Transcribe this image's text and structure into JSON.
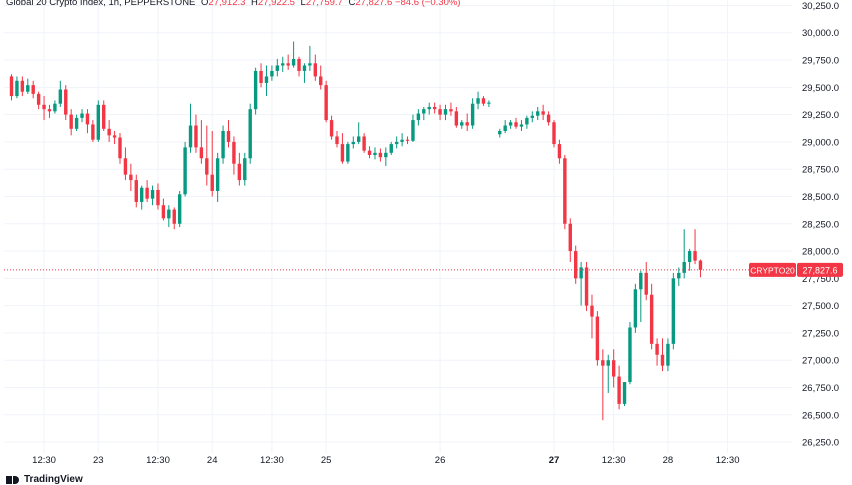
{
  "header": {
    "title": "Global 20 Crypto Index, 1h, PEPPERSTONE",
    "o_label": "O",
    "o_value": "27,912.3",
    "h_label": "H",
    "h_value": "27,922.5",
    "l_label": "L",
    "l_value": "27,759.7",
    "c_label": "C",
    "c_value": "27,827.6",
    "change": "−84.6 (−0.30%)"
  },
  "footer": {
    "brand": "TradingView"
  },
  "colors": {
    "up": "#089981",
    "down": "#f23645",
    "grid": "#f0f3fa",
    "axis_text": "#131722",
    "last_price": "#f23645"
  },
  "chart_data": {
    "type": "candlestick",
    "title": "Global 20 Crypto Index, 1h, PEPPERSTONE",
    "ylim": [
      26150,
      30300
    ],
    "y_ticks": [
      26250,
      26500,
      26750,
      27000,
      27250,
      27500,
      27750,
      28000,
      28250,
      28500,
      28750,
      29000,
      29250,
      29500,
      29750,
      30000,
      30250
    ],
    "y_tick_labels": [
      "26,250.0",
      "26,500.0",
      "26,750.0",
      "27,000.0",
      "27,250.0",
      "27,500.0",
      "27,750.0",
      "28,000.0",
      "28,250.0",
      "28,500.0",
      "28,750.0",
      "29,000.0",
      "29,250.0",
      "29,500.0",
      "29,750.0",
      "30,000.0",
      "30,250.0"
    ],
    "x_tick_labels": [
      {
        "label": "12:30",
        "bar": 6
      },
      {
        "label": "23",
        "bar": 16
      },
      {
        "label": "12:30",
        "bar": 27
      },
      {
        "label": "24",
        "bar": 37
      },
      {
        "label": "12:30",
        "bar": 48
      },
      {
        "label": "25",
        "bar": 58
      },
      {
        "label": "26",
        "bar": 79
      },
      {
        "label": "27",
        "bar": 100
      },
      {
        "label": "12:30",
        "bar": 111
      },
      {
        "label": "28",
        "bar": 121
      },
      {
        "label": "12:30",
        "bar": 132
      }
    ],
    "last_price": {
      "label": "CRYPTO20",
      "value": 27827.6,
      "value_label": "27,827.6"
    },
    "candles": [
      [
        29600,
        29620,
        29380,
        29420
      ],
      [
        29420,
        29600,
        29400,
        29560
      ],
      [
        29560,
        29600,
        29420,
        29460
      ],
      [
        29460,
        29580,
        29440,
        29520
      ],
      [
        29520,
        29560,
        29400,
        29440
      ],
      [
        29440,
        29460,
        29300,
        29340
      ],
      [
        29340,
        29420,
        29200,
        29300
      ],
      [
        29300,
        29340,
        29220,
        29280
      ],
      [
        29280,
        29380,
        29260,
        29350
      ],
      [
        29350,
        29560,
        29320,
        29480
      ],
      [
        29480,
        29520,
        29200,
        29250
      ],
      [
        29250,
        29300,
        29060,
        29120
      ],
      [
        29120,
        29250,
        29100,
        29220
      ],
      [
        29220,
        29300,
        29180,
        29260
      ],
      [
        29260,
        29300,
        29080,
        29160
      ],
      [
        29160,
        29200,
        29000,
        29020
      ],
      [
        29020,
        29380,
        29000,
        29340
      ],
      [
        29340,
        29380,
        29100,
        29120
      ],
      [
        29120,
        29200,
        29000,
        29060
      ],
      [
        29060,
        29100,
        28980,
        29040
      ],
      [
        29040,
        29080,
        28800,
        28850
      ],
      [
        28850,
        28950,
        28650,
        28700
      ],
      [
        28700,
        28800,
        28550,
        28650
      ],
      [
        28650,
        28700,
        28400,
        28450
      ],
      [
        28450,
        28600,
        28380,
        28580
      ],
      [
        28580,
        28650,
        28450,
        28480
      ],
      [
        28480,
        28600,
        28420,
        28560
      ],
      [
        28560,
        28620,
        28380,
        28420
      ],
      [
        28420,
        28480,
        28280,
        28300
      ],
      [
        28300,
        28420,
        28220,
        28380
      ],
      [
        28380,
        28400,
        28200,
        28250
      ],
      [
        28250,
        28550,
        28220,
        28520
      ],
      [
        28520,
        29000,
        28500,
        28950
      ],
      [
        28950,
        29350,
        28900,
        29150
      ],
      [
        29150,
        29250,
        28900,
        28950
      ],
      [
        28950,
        29200,
        28800,
        28850
      ],
      [
        28850,
        29150,
        28600,
        28700
      ],
      [
        28700,
        29100,
        28500,
        28550
      ],
      [
        28550,
        28900,
        28450,
        28850
      ],
      [
        28850,
        29150,
        28800,
        29100
      ],
      [
        29100,
        29200,
        28950,
        29000
      ],
      [
        29000,
        29050,
        28700,
        28800
      ],
      [
        28800,
        28900,
        28600,
        28650
      ],
      [
        28650,
        28900,
        28600,
        28850
      ],
      [
        28850,
        29350,
        28800,
        29300
      ],
      [
        29300,
        29680,
        29250,
        29650
      ],
      [
        29650,
        29720,
        29500,
        29540
      ],
      [
        29540,
        29700,
        29420,
        29600
      ],
      [
        29600,
        29700,
        29560,
        29650
      ],
      [
        29650,
        29760,
        29600,
        29700
      ],
      [
        29700,
        29780,
        29640,
        29720
      ],
      [
        29720,
        29800,
        29660,
        29700
      ],
      [
        29700,
        29920,
        29680,
        29760
      ],
      [
        29760,
        29780,
        29600,
        29650
      ],
      [
        29650,
        29720,
        29540,
        29700
      ],
      [
        29700,
        29880,
        29650,
        29720
      ],
      [
        29720,
        29800,
        29560,
        29600
      ],
      [
        29600,
        29700,
        29480,
        29520
      ],
      [
        29520,
        29560,
        29180,
        29200
      ],
      [
        29200,
        29240,
        29020,
        29050
      ],
      [
        29050,
        29100,
        28950,
        28980
      ],
      [
        28980,
        29080,
        28800,
        28820
      ],
      [
        28820,
        29000,
        28800,
        28980
      ],
      [
        28980,
        29050,
        28940,
        29000
      ],
      [
        29000,
        29180,
        28980,
        29050
      ],
      [
        29050,
        29080,
        28900,
        28920
      ],
      [
        28920,
        28960,
        28850,
        28880
      ],
      [
        28880,
        28950,
        28840,
        28900
      ],
      [
        28900,
        28940,
        28820,
        28860
      ],
      [
        28860,
        28950,
        28780,
        28900
      ],
      [
        28900,
        29000,
        28880,
        28980
      ],
      [
        28980,
        29050,
        28940,
        29000
      ],
      [
        29000,
        29080,
        28960,
        29020
      ],
      [
        29020,
        29050,
        28980,
        29010
      ],
      [
        29010,
        29250,
        29000,
        29200
      ],
      [
        29200,
        29300,
        29150,
        29260
      ],
      [
        29260,
        29320,
        29200,
        29300
      ],
      [
        29300,
        29360,
        29250,
        29320
      ],
      [
        29320,
        29360,
        29260,
        29300
      ],
      [
        29300,
        29340,
        29200,
        29250
      ],
      [
        29250,
        29340,
        29200,
        29300
      ],
      [
        29300,
        29360,
        29240,
        29280
      ],
      [
        29280,
        29320,
        29130,
        29150
      ],
      [
        29150,
        29200,
        29120,
        29180
      ],
      [
        29180,
        29260,
        29100,
        29150
      ],
      [
        29150,
        29400,
        29120,
        29350
      ],
      [
        29350,
        29460,
        29300,
        29400
      ],
      [
        29400,
        29420,
        29330,
        29350
      ],
      [
        29350,
        29380,
        29320,
        29360
      ],
      [
        null,
        null,
        null,
        null
      ],
      [
        29070,
        29120,
        29040,
        29100
      ],
      [
        29100,
        29200,
        29080,
        29150
      ],
      [
        29150,
        29200,
        29120,
        29180
      ],
      [
        29180,
        29220,
        29120,
        29140
      ],
      [
        29140,
        29200,
        29100,
        29160
      ],
      [
        29160,
        29240,
        29120,
        29220
      ],
      [
        29220,
        29280,
        29180,
        29240
      ],
      [
        29240,
        29320,
        29200,
        29280
      ],
      [
        29280,
        29340,
        29200,
        29250
      ],
      [
        29250,
        29280,
        29150,
        29180
      ],
      [
        29180,
        29200,
        28950,
        28980
      ],
      [
        28980,
        29020,
        28800,
        28850
      ],
      [
        28850,
        28880,
        28200,
        28250
      ],
      [
        28250,
        28300,
        27900,
        28000
      ],
      [
        28000,
        28050,
        27700,
        27750
      ],
      [
        27750,
        27900,
        27500,
        27850
      ],
      [
        27850,
        27900,
        27450,
        27500
      ],
      [
        27500,
        27600,
        27200,
        27400
      ],
      [
        27400,
        27450,
        26950,
        27000
      ],
      [
        27000,
        27100,
        26450,
        26950
      ],
      [
        26950,
        27050,
        26700,
        27000
      ],
      [
        27000,
        27100,
        26750,
        26850
      ],
      [
        26850,
        26950,
        26550,
        26600
      ],
      [
        26600,
        26800,
        26580,
        26800
      ],
      [
        26800,
        27350,
        26780,
        27300
      ],
      [
        27300,
        27700,
        27250,
        27650
      ],
      [
        27650,
        27820,
        27350,
        27800
      ],
      [
        27800,
        27900,
        27550,
        27600
      ],
      [
        27600,
        27700,
        27100,
        27150
      ],
      [
        27150,
        27200,
        26950,
        27050
      ],
      [
        27050,
        27200,
        26900,
        26950
      ],
      [
        26950,
        27200,
        26900,
        27150
      ],
      [
        27150,
        27800,
        27100,
        27750
      ],
      [
        27750,
        27850,
        27680,
        27800
      ],
      [
        27800,
        28200,
        27750,
        27900
      ],
      [
        27900,
        28020,
        27820,
        28000
      ],
      [
        28000,
        28200,
        27880,
        27912.3
      ],
      [
        27912.3,
        27922.5,
        27759.7,
        27827.6
      ]
    ]
  }
}
